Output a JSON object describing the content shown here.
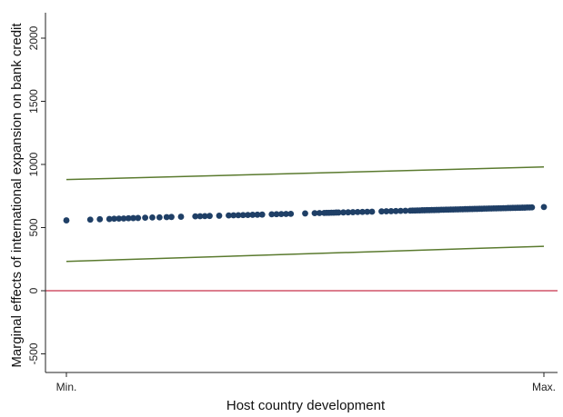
{
  "chart_data": {
    "type": "scatter",
    "xlabel": "Host country development",
    "ylabel": "Marginal effects of international expansion on bank credit",
    "x_tick_labels": [
      "Min.",
      "Max."
    ],
    "xlim": [
      0,
      1
    ],
    "ylim": [
      -700,
      2200
    ],
    "y_ticks": [
      -500,
      0,
      500,
      1000,
      1500,
      2000
    ],
    "y_tick_labels": [
      "-500",
      "0",
      "500",
      "1000",
      "1500",
      "2000"
    ],
    "grid": false,
    "legend": "none",
    "reference_line": {
      "y": 0,
      "color": "#c8324b"
    },
    "upper_ci": {
      "x": [
        0,
        1
      ],
      "y": [
        880,
        980
      ],
      "color": "#5a7a2e"
    },
    "lower_ci": {
      "x": [
        0,
        1
      ],
      "y": [
        232,
        352
      ],
      "color": "#5a7a2e"
    },
    "marker_color": "#1f3f66",
    "points": [
      {
        "x": 0.0,
        "y": 557
      },
      {
        "x": 0.05,
        "y": 563
      },
      {
        "x": 0.07,
        "y": 566
      },
      {
        "x": 0.09,
        "y": 568
      },
      {
        "x": 0.1,
        "y": 570
      },
      {
        "x": 0.11,
        "y": 571
      },
      {
        "x": 0.12,
        "y": 572
      },
      {
        "x": 0.13,
        "y": 574
      },
      {
        "x": 0.14,
        "y": 575
      },
      {
        "x": 0.15,
        "y": 576
      },
      {
        "x": 0.165,
        "y": 578
      },
      {
        "x": 0.18,
        "y": 580
      },
      {
        "x": 0.195,
        "y": 581
      },
      {
        "x": 0.21,
        "y": 583
      },
      {
        "x": 0.22,
        "y": 584
      },
      {
        "x": 0.24,
        "y": 586
      },
      {
        "x": 0.27,
        "y": 589
      },
      {
        "x": 0.28,
        "y": 590
      },
      {
        "x": 0.29,
        "y": 591
      },
      {
        "x": 0.3,
        "y": 592
      },
      {
        "x": 0.32,
        "y": 594
      },
      {
        "x": 0.34,
        "y": 596
      },
      {
        "x": 0.35,
        "y": 597
      },
      {
        "x": 0.36,
        "y": 598
      },
      {
        "x": 0.37,
        "y": 599
      },
      {
        "x": 0.38,
        "y": 600
      },
      {
        "x": 0.39,
        "y": 601
      },
      {
        "x": 0.4,
        "y": 602
      },
      {
        "x": 0.41,
        "y": 603
      },
      {
        "x": 0.43,
        "y": 605
      },
      {
        "x": 0.44,
        "y": 606
      },
      {
        "x": 0.45,
        "y": 607
      },
      {
        "x": 0.46,
        "y": 608
      },
      {
        "x": 0.47,
        "y": 609
      },
      {
        "x": 0.5,
        "y": 612
      },
      {
        "x": 0.52,
        "y": 614
      },
      {
        "x": 0.53,
        "y": 615
      },
      {
        "x": 0.54,
        "y": 616
      },
      {
        "x": 0.545,
        "y": 617
      },
      {
        "x": 0.55,
        "y": 617
      },
      {
        "x": 0.555,
        "y": 618
      },
      {
        "x": 0.56,
        "y": 618
      },
      {
        "x": 0.565,
        "y": 619
      },
      {
        "x": 0.57,
        "y": 619
      },
      {
        "x": 0.58,
        "y": 620
      },
      {
        "x": 0.59,
        "y": 621
      },
      {
        "x": 0.6,
        "y": 622
      },
      {
        "x": 0.61,
        "y": 623
      },
      {
        "x": 0.62,
        "y": 624
      },
      {
        "x": 0.63,
        "y": 625
      },
      {
        "x": 0.64,
        "y": 626
      },
      {
        "x": 0.66,
        "y": 628
      },
      {
        "x": 0.67,
        "y": 629
      },
      {
        "x": 0.68,
        "y": 630
      },
      {
        "x": 0.69,
        "y": 631
      },
      {
        "x": 0.7,
        "y": 632
      },
      {
        "x": 0.71,
        "y": 633
      },
      {
        "x": 0.72,
        "y": 634
      },
      {
        "x": 0.725,
        "y": 635
      },
      {
        "x": 0.73,
        "y": 635
      },
      {
        "x": 0.735,
        "y": 636
      },
      {
        "x": 0.74,
        "y": 636
      },
      {
        "x": 0.745,
        "y": 637
      },
      {
        "x": 0.75,
        "y": 637
      },
      {
        "x": 0.755,
        "y": 638
      },
      {
        "x": 0.76,
        "y": 638
      },
      {
        "x": 0.765,
        "y": 639
      },
      {
        "x": 0.77,
        "y": 639
      },
      {
        "x": 0.775,
        "y": 640
      },
      {
        "x": 0.78,
        "y": 640
      },
      {
        "x": 0.785,
        "y": 641
      },
      {
        "x": 0.79,
        "y": 641
      },
      {
        "x": 0.795,
        "y": 642
      },
      {
        "x": 0.8,
        "y": 642
      },
      {
        "x": 0.805,
        "y": 643
      },
      {
        "x": 0.81,
        "y": 643
      },
      {
        "x": 0.815,
        "y": 644
      },
      {
        "x": 0.82,
        "y": 644
      },
      {
        "x": 0.825,
        "y": 645
      },
      {
        "x": 0.83,
        "y": 645
      },
      {
        "x": 0.835,
        "y": 646
      },
      {
        "x": 0.84,
        "y": 646
      },
      {
        "x": 0.845,
        "y": 647
      },
      {
        "x": 0.85,
        "y": 647
      },
      {
        "x": 0.855,
        "y": 648
      },
      {
        "x": 0.86,
        "y": 648
      },
      {
        "x": 0.865,
        "y": 649
      },
      {
        "x": 0.87,
        "y": 649
      },
      {
        "x": 0.875,
        "y": 650
      },
      {
        "x": 0.88,
        "y": 650
      },
      {
        "x": 0.885,
        "y": 651
      },
      {
        "x": 0.89,
        "y": 651
      },
      {
        "x": 0.895,
        "y": 652
      },
      {
        "x": 0.9,
        "y": 652
      },
      {
        "x": 0.905,
        "y": 653
      },
      {
        "x": 0.91,
        "y": 653
      },
      {
        "x": 0.915,
        "y": 654
      },
      {
        "x": 0.92,
        "y": 654
      },
      {
        "x": 0.925,
        "y": 655
      },
      {
        "x": 0.93,
        "y": 655
      },
      {
        "x": 0.935,
        "y": 656
      },
      {
        "x": 0.94,
        "y": 656
      },
      {
        "x": 0.945,
        "y": 657
      },
      {
        "x": 0.95,
        "y": 657
      },
      {
        "x": 0.955,
        "y": 658
      },
      {
        "x": 0.96,
        "y": 658
      },
      {
        "x": 0.965,
        "y": 659
      },
      {
        "x": 0.97,
        "y": 659
      },
      {
        "x": 0.975,
        "y": 660
      },
      {
        "x": 1.0,
        "y": 663
      }
    ]
  }
}
